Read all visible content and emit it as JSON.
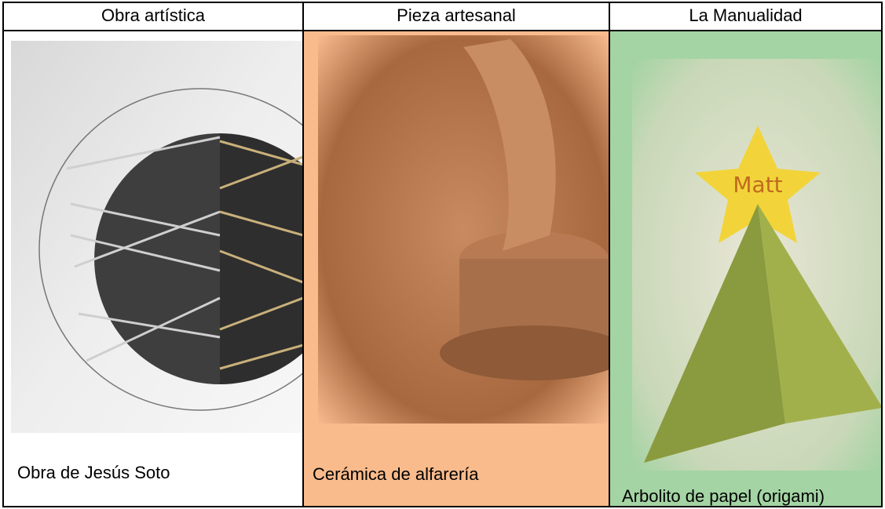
{
  "table": {
    "header": [
      "Obra artística",
      "Pieza artesanal",
      "La Manualidad"
    ],
    "cells": [
      {
        "caption": "Obra de Jesús Soto"
      },
      {
        "caption": "Cerámica de alfarería"
      },
      {
        "caption": "Arbolito de papel (origami)",
        "image_text": "Matt"
      }
    ]
  }
}
